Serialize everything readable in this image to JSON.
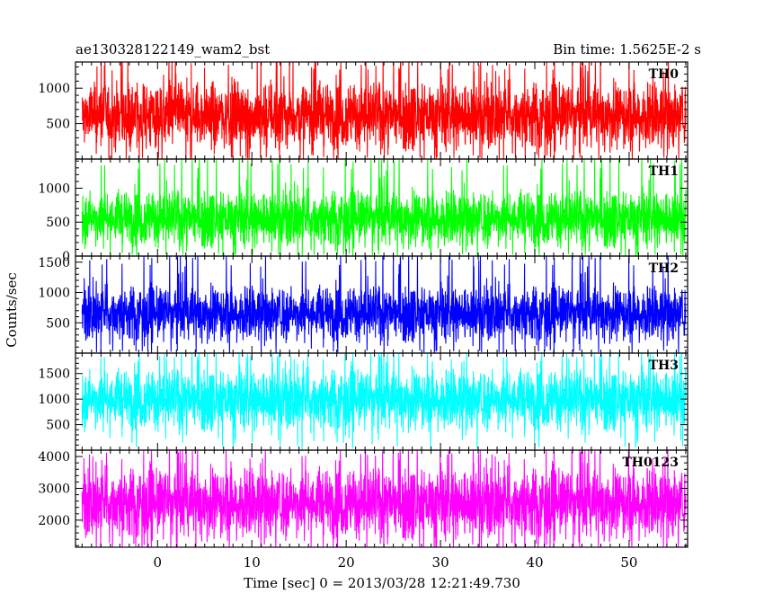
{
  "header": {
    "title": "ae130328122149_wam2_bst",
    "bin_time": "Bin time: 1.5625E-2 s"
  },
  "axes": {
    "ylabel": "Counts/sec",
    "xlabel": "Time [sec] 0 = 2013/03/28 12:21:49.730"
  },
  "chart_data": {
    "type": "line",
    "x_range": [
      -8.7,
      56.2
    ],
    "x_data_range": [
      -8.0,
      56.0
    ],
    "x_ticks": [
      0,
      10,
      20,
      30,
      40,
      50
    ],
    "x_tick_labels": [
      "0",
      "10",
      "20",
      "30",
      "40",
      "50"
    ],
    "panels": [
      {
        "name": "TH0",
        "color": "#ff0000",
        "ylim": [
          0,
          1370
        ],
        "yticks": [
          500,
          1000
        ],
        "ytick_labels": [
          "500",
          "1000"
        ],
        "mean": 620,
        "spread": 240,
        "floor": 30,
        "peak": 1370
      },
      {
        "name": "TH1",
        "color": "#00ff00",
        "ylim": [
          0,
          1430
        ],
        "yticks": [
          0,
          500,
          1000
        ],
        "ytick_labels": [
          "0",
          "500",
          "1000"
        ],
        "mean": 560,
        "spread": 210,
        "floor": 40,
        "peak": 1400
      },
      {
        "name": "TH2",
        "color": "#0000ff",
        "ylim": [
          0,
          1600
        ],
        "yticks": [
          500,
          1000,
          1500
        ],
        "ytick_labels": [
          "500",
          "1000",
          "1500"
        ],
        "mean": 660,
        "spread": 230,
        "floor": 60,
        "peak": 1580
      },
      {
        "name": "TH3",
        "color": "#00ffff",
        "ylim": [
          0,
          1900
        ],
        "yticks": [
          500,
          1000,
          1500
        ],
        "ytick_labels": [
          "500",
          "1000",
          "1500"
        ],
        "mean": 1000,
        "spread": 300,
        "floor": 300,
        "peak": 1900
      },
      {
        "name": "TH0123",
        "color": "#ff00ff",
        "ylim": [
          1150,
          4200
        ],
        "yticks": [
          2000,
          3000,
          4000
        ],
        "ytick_labels": [
          "2000",
          "3000",
          "4000"
        ],
        "mean": 2550,
        "spread": 560,
        "floor": 1150,
        "peak": 4200
      }
    ]
  }
}
